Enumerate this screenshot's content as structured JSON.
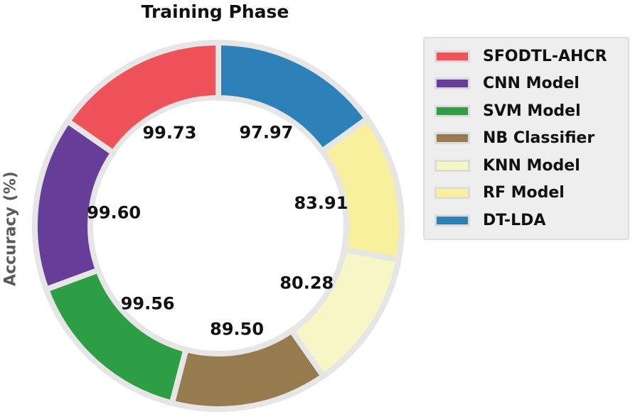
{
  "chart_data": {
    "type": "pie",
    "variant": "donut",
    "title": "Training Phase",
    "ylabel": "Accuracy (%)",
    "legend_position": "right",
    "categories": [
      "SFODTL-AHCR",
      "CNN Model",
      "SVM Model",
      "NB Classifier",
      "KNN Model",
      "RF Model",
      "DT-LDA"
    ],
    "values": [
      99.73,
      99.6,
      99.56,
      89.5,
      80.28,
      83.91,
      97.97
    ],
    "value_labels": [
      "99.73",
      "99.60",
      "99.56",
      "89.50",
      "80.28",
      "83.91",
      "97.97"
    ],
    "colors": [
      "#f0525a",
      "#663d99",
      "#2e9e45",
      "#967b4e",
      "#f7f6c6",
      "#f9f09e",
      "#2c81b9"
    ],
    "start_angle_deg": 90,
    "direction": "counterclockwise",
    "edge_color": "#e6e6e6"
  }
}
